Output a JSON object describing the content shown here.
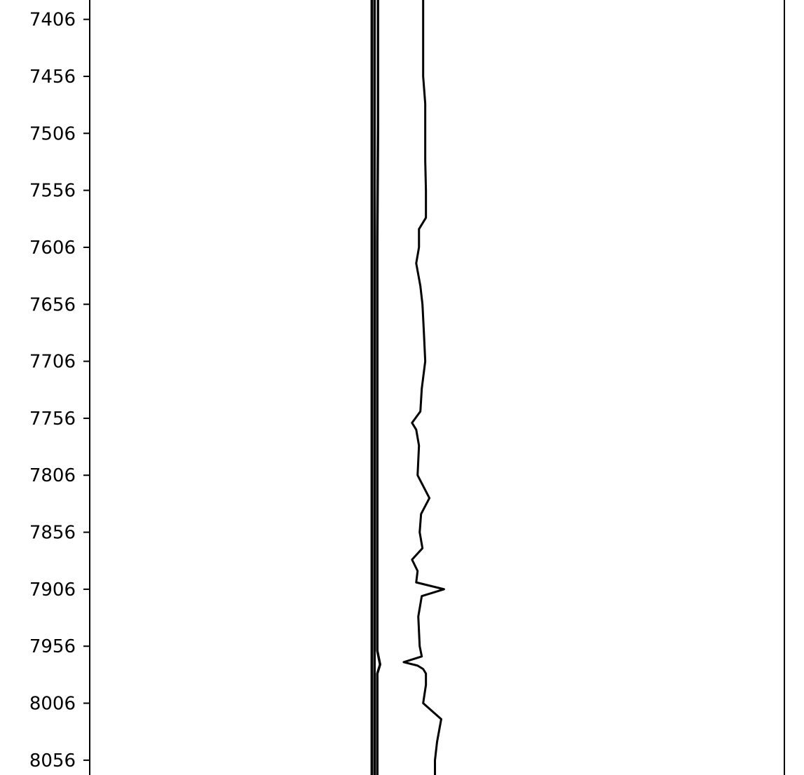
{
  "chart_data": {
    "type": "line",
    "title": "",
    "xlabel": "",
    "ylabel": "",
    "y_axis": {
      "inverted": true,
      "range": [
        7389,
        8069
      ],
      "ticks": [
        7406,
        7456,
        7506,
        7556,
        7606,
        7656,
        7706,
        7756,
        7806,
        7856,
        7906,
        7956,
        8006,
        8056
      ],
      "tick_labels": [
        "7406",
        "7456",
        "7506",
        "7556",
        "7606",
        "7656",
        "7706",
        "7756",
        "7806",
        "7856",
        "7906",
        "7956",
        "8006",
        "8056"
      ]
    },
    "x_axis": {
      "range": [
        0,
        1
      ],
      "ticks_visible": false
    },
    "grid": false,
    "legend": "none",
    "series": [
      {
        "color": "#000000",
        "depth": [
          7389,
          7406,
          7430,
          7456,
          7480,
          7506,
          7530,
          7556,
          7580,
          7590,
          7606,
          7620,
          7640,
          7656,
          7680,
          7706,
          7730,
          7750,
          7760,
          7766,
          7780,
          7806,
          7826,
          7840,
          7856,
          7870,
          7880,
          7890,
          7900,
          7906,
          7912,
          7930,
          7956,
          7965,
          7970,
          7973,
          7976,
          7980,
          7990,
          8006,
          8020,
          8040,
          8056,
          8069
        ],
        "value": [
          0.48,
          0.48,
          0.48,
          0.48,
          0.483,
          0.483,
          0.483,
          0.484,
          0.484,
          0.474,
          0.474,
          0.47,
          0.476,
          0.479,
          0.481,
          0.483,
          0.478,
          0.476,
          0.464,
          0.47,
          0.474,
          0.472,
          0.489,
          0.477,
          0.475,
          0.479,
          0.464,
          0.472,
          0.47,
          0.51,
          0.478,
          0.473,
          0.475,
          0.478,
          0.452,
          0.472,
          0.48,
          0.484,
          0.484,
          0.48,
          0.506,
          0.5,
          0.497,
          0.497
        ]
      },
      {
        "color": "#000000",
        "depth": [
          7389,
          7500,
          7600,
          7700,
          7800,
          7900,
          7960,
          7972,
          7980,
          8006,
          8056,
          8069
        ],
        "value": [
          0.415,
          0.415,
          0.414,
          0.414,
          0.414,
          0.414,
          0.414,
          0.418,
          0.414,
          0.414,
          0.414,
          0.414
        ]
      },
      {
        "color": "#000000",
        "depth": [
          7389,
          7600,
          7800,
          8000,
          8069
        ],
        "value": [
          0.406,
          0.406,
          0.406,
          0.406,
          0.406
        ]
      },
      {
        "color": "#000000",
        "depth": [
          7389,
          7600,
          7800,
          8000,
          8069
        ],
        "value": [
          0.41,
          0.41,
          0.41,
          0.41,
          0.41
        ]
      }
    ]
  }
}
